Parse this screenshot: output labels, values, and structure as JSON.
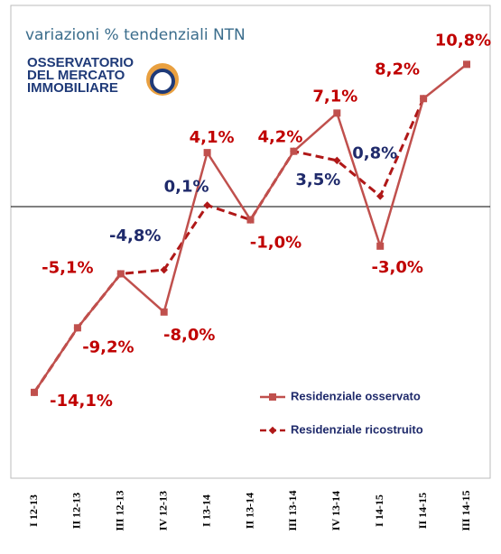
{
  "chart_data": {
    "type": "line",
    "title": "variazioni % tendenziali NTN",
    "categories": [
      "I 12-13",
      "II 12-13",
      "III 12-13",
      "IV 12-13",
      "I 13-14",
      "II 13-14",
      "III 13-14",
      "IV 13-14",
      "I 14-15",
      "II 14-15",
      "III 14-15"
    ],
    "ylim": [
      -20,
      15
    ],
    "series": [
      {
        "name": "Residenziale osservato",
        "color": "#c0504d",
        "label_color": "#c00000",
        "dash": false,
        "values": [
          -14.1,
          -9.2,
          -5.1,
          -8.0,
          4.1,
          -1.0,
          4.2,
          7.1,
          -3.0,
          8.2,
          10.8
        ],
        "value_labels": [
          "-14,1%",
          "-9,2%",
          "-5,1%",
          "-8,0%",
          "4,1%",
          "-1,0%",
          "4,2%",
          "7,1%",
          "-3,0%",
          "8,2%",
          "10,8%"
        ]
      },
      {
        "name": "Residenziale ricostruito",
        "color": "#b01818",
        "label_color": "#1f2a6b",
        "dash": true,
        "values": [
          -14.1,
          -9.2,
          -5.1,
          -4.8,
          0.1,
          -1.0,
          4.2,
          3.5,
          0.8,
          8.2,
          null
        ],
        "value_labels": [
          null,
          null,
          null,
          "-4,8%",
          "0,1%",
          null,
          null,
          "3,5%",
          "0,8%",
          null,
          null
        ]
      }
    ]
  },
  "logo": [
    "OSSERVATORIO",
    "DEL MERCATO",
    "IMMOBILIARE"
  ]
}
